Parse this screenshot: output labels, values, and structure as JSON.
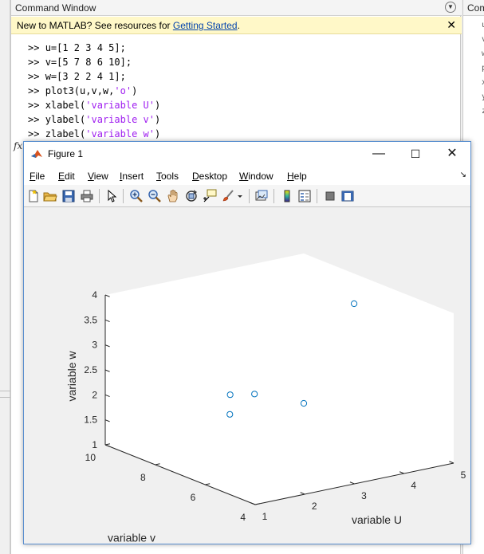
{
  "command_window": {
    "title": "Command Window",
    "banner": {
      "text": "New to MATLAB? See resources for ",
      "link": "Getting Started",
      "suffix": ".",
      "close": "✕"
    },
    "prompt": ">> ",
    "lines": [
      {
        "code": "u=[1 2 3 4 5];",
        "str": "",
        "tail": ""
      },
      {
        "code": "v=[5 7 8 6 10];",
        "str": "",
        "tail": ""
      },
      {
        "code": "w=[3 2 2 4 1];",
        "str": "",
        "tail": ""
      },
      {
        "code": "plot3(u,v,w,",
        "str": "'o'",
        "tail": ")"
      },
      {
        "code": "xlabel(",
        "str": "'variable U'",
        "tail": ")"
      },
      {
        "code": "ylabel(",
        "str": "'variable v'",
        "tail": ")"
      },
      {
        "code": "zlabel(",
        "str": "'variable w'",
        "tail": ")"
      }
    ],
    "fx": "fx"
  },
  "right_panel": {
    "title": "Com",
    "letters": [
      "u",
      "v",
      "w",
      "p",
      "x",
      "y",
      "z"
    ]
  },
  "figure": {
    "title": "Figure 1",
    "menus": [
      {
        "id": "file",
        "label": "File",
        "u": "F",
        "rest": "ile"
      },
      {
        "id": "edit",
        "label": "Edit",
        "u": "E",
        "rest": "dit"
      },
      {
        "id": "view",
        "label": "View",
        "u": "V",
        "rest": "iew"
      },
      {
        "id": "insert",
        "label": "Insert",
        "u": "I",
        "rest": "nsert"
      },
      {
        "id": "tools",
        "label": "Tools",
        "u": "T",
        "rest": "ools"
      },
      {
        "id": "desktop",
        "label": "Desktop",
        "u": "D",
        "rest": "esktop"
      },
      {
        "id": "window",
        "label": "Window",
        "u": "W",
        "rest": "indow"
      },
      {
        "id": "help",
        "label": "Help",
        "u": "H",
        "rest": "elp"
      }
    ],
    "window_buttons": {
      "minimize": "—",
      "maximize": "☐",
      "close": "✕"
    },
    "toolbar_icons": [
      "new-figure-icon",
      "open-file-icon",
      "save-icon",
      "print-icon",
      "edit-plot-icon",
      "zoom-in-icon",
      "zoom-out-icon",
      "pan-icon",
      "rotate-3d-icon",
      "data-cursor-icon",
      "brush-icon",
      "link-plot-icon",
      "colorbar-icon",
      "legend-icon",
      "hide-plot-tools-icon",
      "show-plot-tools-icon"
    ]
  },
  "chart_data": {
    "type": "scatter",
    "view": "3d",
    "series": [
      {
        "x": [
          1,
          2,
          3,
          4,
          5
        ],
        "y": [
          5,
          7,
          8,
          6,
          10
        ],
        "z": [
          3,
          2,
          2,
          4,
          1
        ],
        "marker": "o",
        "color": "#0072bd"
      }
    ],
    "xlabel": "variable U",
    "ylabel": "variable v",
    "zlabel": "variable w",
    "xlim": [
      1,
      5
    ],
    "ylim": [
      4,
      10
    ],
    "zlim": [
      1,
      4
    ],
    "xticks": [
      "1",
      "2",
      "3",
      "4",
      "5"
    ],
    "yticks": [
      "4",
      "6",
      "8",
      "10"
    ],
    "zticks": [
      "1",
      "1.5",
      "2",
      "2.5",
      "3",
      "3.5",
      "4"
    ],
    "background": "#ffffff",
    "grid": false
  }
}
